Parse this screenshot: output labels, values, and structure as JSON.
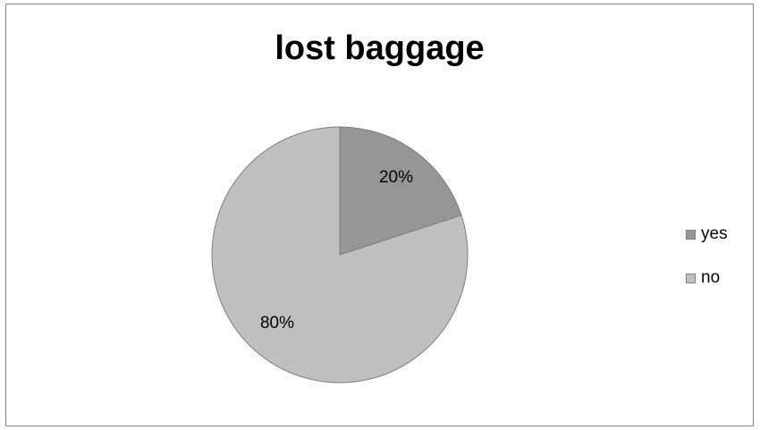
{
  "chart_data": {
    "type": "pie",
    "title": "lost baggage",
    "categories": [
      "yes",
      "no"
    ],
    "values": [
      20,
      80
    ],
    "data_labels": [
      "20%",
      "80%"
    ],
    "colors": [
      "#969696",
      "#c0c0c0"
    ],
    "edge_color": "#7f7f7f",
    "start_angle": "12 o'clock",
    "direction": "clockwise",
    "legend_position": "right"
  }
}
